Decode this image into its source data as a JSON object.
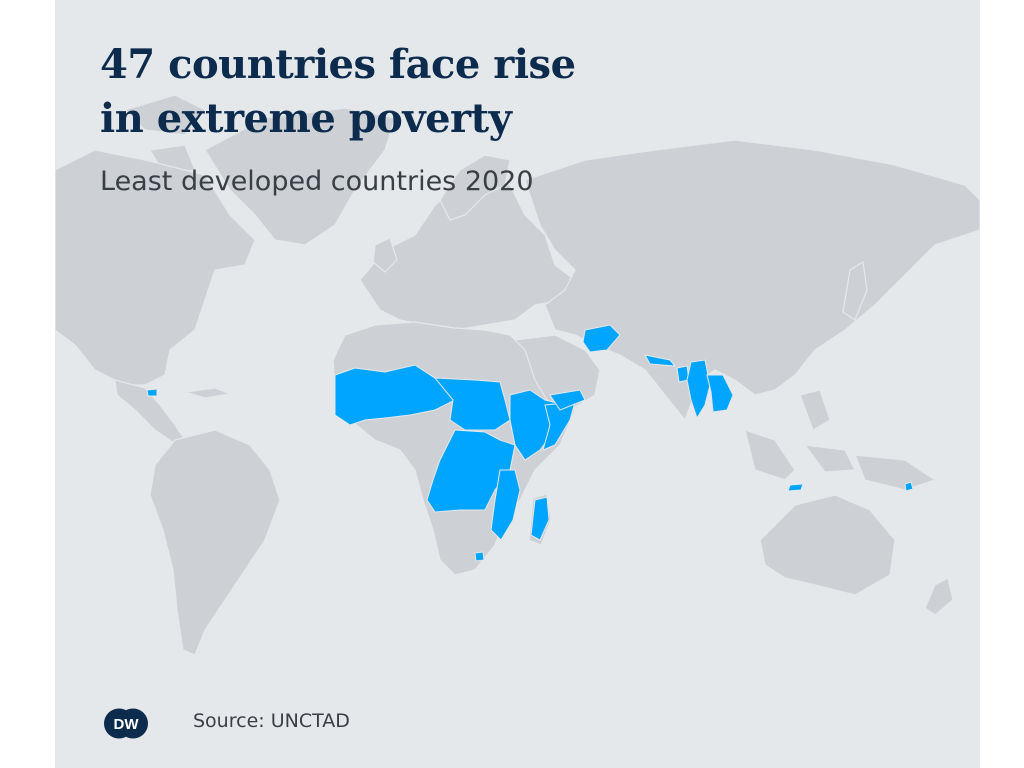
{
  "title_line1": "47 countries face rise",
  "title_line2": "in extreme poverty",
  "subtitle": "Least developed countries 2020",
  "source": "Source: UNCTAD",
  "logo_text": "DW",
  "colors": {
    "background": "#e5e8eb",
    "land": "#cdd1d6",
    "highlight": "#00a5ff",
    "title": "#0c2b4d",
    "text": "#3a3f44"
  },
  "legend_highlight_meaning": "Least developed countries 2020"
}
